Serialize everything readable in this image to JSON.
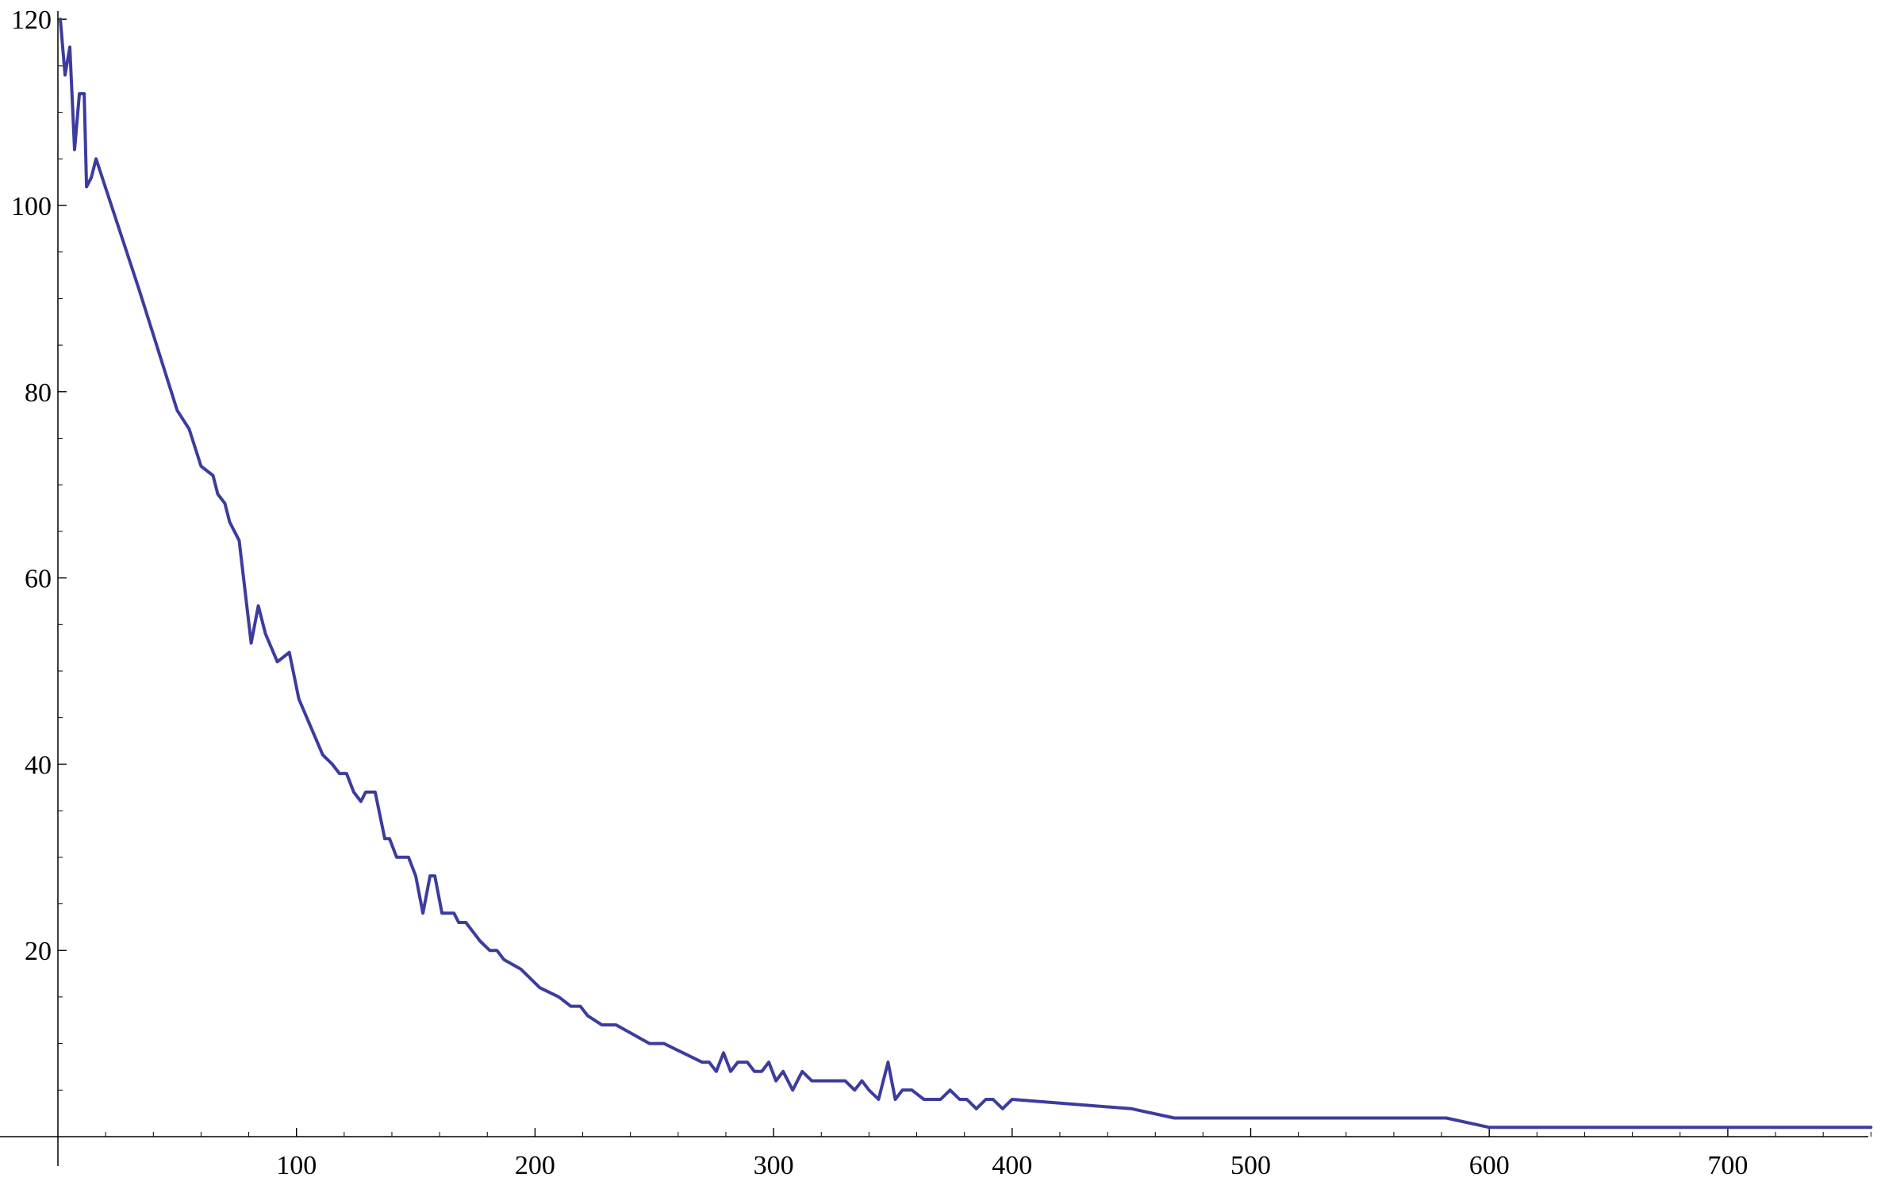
{
  "chart_data": {
    "type": "line",
    "title": "",
    "xlabel": "",
    "ylabel": "",
    "xlim": [
      0,
      760
    ],
    "ylim": [
      0,
      120
    ],
    "x_ticks": [
      100,
      200,
      300,
      400,
      500,
      600,
      700
    ],
    "y_ticks": [
      20,
      40,
      60,
      80,
      100,
      120
    ],
    "x_tick_labels": [
      "100",
      "200",
      "300",
      "400",
      "500",
      "600",
      "700"
    ],
    "y_tick_labels": [
      "20",
      "40",
      "60",
      "80",
      "100",
      "120"
    ],
    "grid": false,
    "legend": "none",
    "line_color": "#3C3C9E",
    "series": [
      {
        "x": [
          1,
          3,
          5,
          7,
          9,
          11,
          12,
          14,
          16,
          34,
          50,
          55,
          60,
          65,
          67,
          70,
          72,
          76,
          81,
          84,
          87,
          92,
          97,
          101,
          111,
          115,
          118,
          121,
          124,
          127,
          129,
          133,
          137,
          139,
          142,
          144,
          147,
          150,
          153,
          156,
          158,
          161,
          163,
          166,
          168,
          171,
          174,
          177,
          181,
          184,
          187,
          194,
          202,
          210,
          215,
          219,
          222,
          228,
          234,
          248,
          254,
          270,
          273,
          276,
          279,
          282,
          285,
          289,
          292,
          295,
          298,
          301,
          304,
          308,
          312,
          316,
          320,
          330,
          334,
          337,
          340,
          344,
          348,
          351,
          354,
          358,
          363,
          366,
          370,
          374,
          378,
          381,
          385,
          389,
          392,
          396,
          400,
          450,
          468,
          582,
          600,
          760
        ],
        "y": [
          120,
          114,
          117,
          106,
          112,
          112,
          102,
          103,
          105,
          91,
          78,
          76,
          72,
          71,
          69,
          68,
          66,
          64,
          53,
          57,
          54,
          51,
          52,
          47,
          41,
          40,
          39,
          39,
          37,
          36,
          37,
          37,
          32,
          32,
          30,
          30,
          30,
          28,
          24,
          28,
          28,
          24,
          24,
          24,
          23,
          23,
          22,
          21,
          20,
          20,
          19,
          18,
          16,
          15,
          14,
          14,
          13,
          12,
          12,
          10,
          10,
          8,
          8,
          7,
          9,
          7,
          8,
          8,
          7,
          7,
          8,
          6,
          7,
          5,
          7,
          6,
          6,
          6,
          5,
          6,
          5,
          4,
          8,
          4,
          5,
          5,
          4,
          4,
          4,
          5,
          4,
          4,
          3,
          4,
          4,
          3,
          4,
          3,
          2,
          2,
          1,
          1
        ]
      }
    ]
  }
}
